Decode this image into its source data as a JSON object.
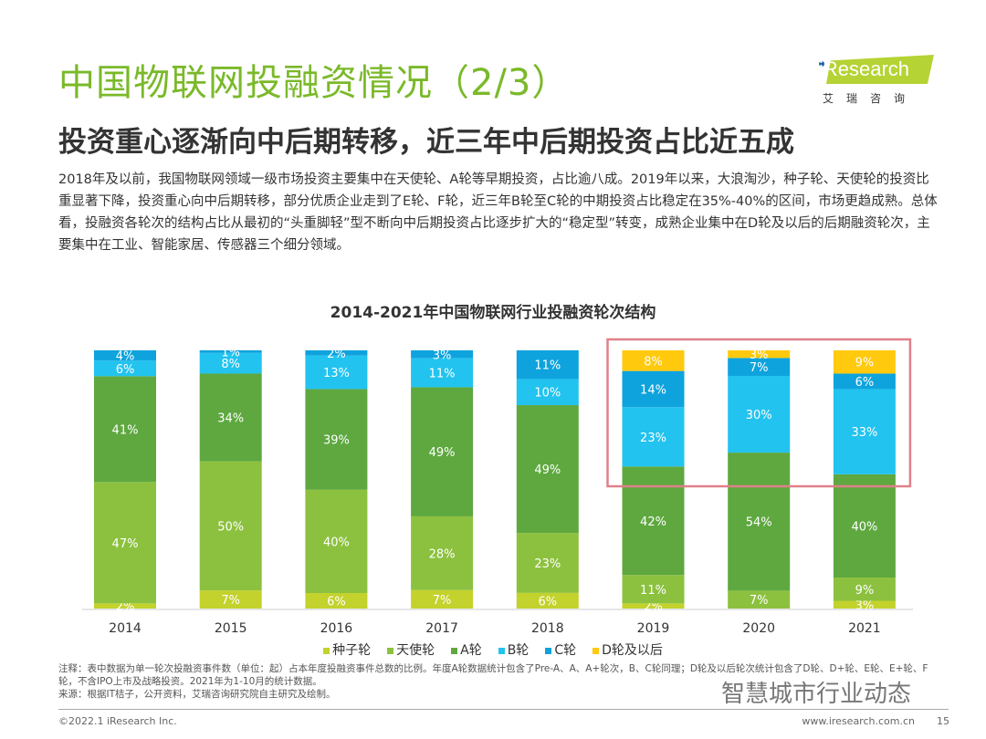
{
  "title": "中国物联网投融资情况（2/3）",
  "subtitle": "投资重心逐渐向中后期转移，近三年中后期投资占比近五成",
  "body": "2018年及以前，我国物联网领域一级市场投资主要集中在天使轮、A轮等早期投资，占比逾八成。2019年以来，大浪淘沙，种子轮、天使轮的投资比重显著下降，投资重心向中后期转移，部分优质企业走到了E轮、F轮，近三年B轮至C轮的中期投资占比稳定在35%-40%的区间，市场更趋成熟。总体看，投融资各轮次的结构占比从最初的“头重脚轻”型不断向中后期投资占比逐步扩大的“稳定型”转变，成熟企业集中在D轮及以后的后期融资轮次，主要集中在工业、智能家居、传感器三个细分领域。",
  "logo": {
    "word": "iResearch",
    "cn": "艾瑞咨询"
  },
  "chart_data": {
    "type": "bar",
    "stacked": true,
    "title": "2014-2021年中国物联网行业投融资轮次结构",
    "categories": [
      "2014",
      "2015",
      "2016",
      "2017",
      "2018",
      "2019",
      "2020",
      "2021"
    ],
    "series": [
      {
        "name": "种子轮",
        "color": "#c3d22c",
        "values": [
          2,
          7,
          6,
          7,
          6,
          2,
          null,
          3
        ]
      },
      {
        "name": "天使轮",
        "color": "#8cc13f",
        "values": [
          47,
          50,
          40,
          28,
          23,
          11,
          7,
          9
        ]
      },
      {
        "name": "A轮",
        "color": "#5ea83f",
        "values": [
          41,
          34,
          39,
          49,
          49,
          42,
          54,
          40
        ]
      },
      {
        "name": "B轮",
        "color": "#22c3ef",
        "values": [
          6,
          8,
          13,
          11,
          10,
          23,
          30,
          33
        ]
      },
      {
        "name": "C轮",
        "color": "#0ea3dd",
        "values": [
          4,
          1,
          2,
          3,
          11,
          14,
          7,
          6
        ]
      },
      {
        "name": "D轮及以后",
        "color": "#ffc90e",
        "values": [
          null,
          null,
          null,
          null,
          null,
          8,
          3,
          9
        ]
      }
    ],
    "unit": "%",
    "ylim": [
      0,
      100
    ],
    "legend": "bottom",
    "highlight": {
      "categories": [
        "2019",
        "2020",
        "2021"
      ],
      "color": "#e0808a"
    }
  },
  "note": "注释：表中数据为单一轮次投融资事件数（单位：起）占本年度投融资事件总数的比例。年度A轮数据统计包含了Pre-A、A、A+轮次，B、C轮同理；D轮及以后轮次统计包含了D轮、D+轮、E轮、E+轮、F轮，不含IPO上市及战略投资。2021年为1-10月的统计数据。",
  "source": "来源：根据IT桔子，公开资料，艾瑞咨询研究院自主研究及绘制。",
  "watermark": "智慧城市行业动态",
  "footer": {
    "copyright": "©2022.1 iResearch Inc.",
    "url": "www.iresearch.com.cn",
    "page": "15"
  }
}
